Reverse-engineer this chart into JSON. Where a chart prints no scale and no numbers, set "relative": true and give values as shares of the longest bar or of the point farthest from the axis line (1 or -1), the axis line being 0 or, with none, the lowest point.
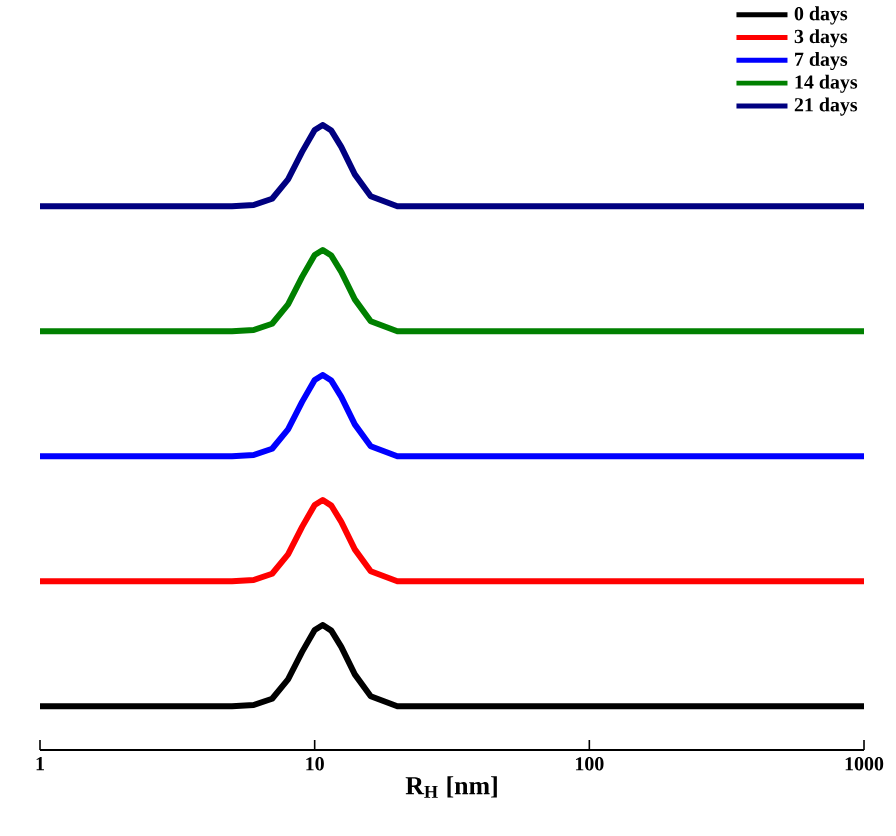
{
  "chart_data": {
    "type": "line",
    "relative": true,
    "log": "x",
    "xlabel": "R$_{H}$ [nm]",
    "xlim": [
      1,
      1000
    ],
    "xticks": [
      1,
      10,
      100,
      1000
    ],
    "legend": "top right",
    "marker": "none",
    "line_style": "solid",
    "x": [
      1,
      5,
      6,
      7,
      8,
      9,
      10,
      10.7,
      11.5,
      12.5,
      14,
      16,
      20,
      1000
    ],
    "series": [
      {
        "name": "0 days",
        "color": "#000000",
        "values": [
          0.07,
          0.07,
          0.072,
          0.082,
          0.113,
          0.157,
          0.192,
          0.2,
          0.191,
          0.165,
          0.121,
          0.086,
          0.07,
          0.07
        ]
      },
      {
        "name": "3 days",
        "color": "#ff0000",
        "values": [
          0.27,
          0.27,
          0.272,
          0.282,
          0.313,
          0.357,
          0.392,
          0.4,
          0.391,
          0.365,
          0.321,
          0.286,
          0.27,
          0.27
        ]
      },
      {
        "name": "7 days",
        "color": "#0000ff",
        "values": [
          0.47,
          0.47,
          0.472,
          0.482,
          0.513,
          0.557,
          0.592,
          0.6,
          0.591,
          0.565,
          0.521,
          0.486,
          0.47,
          0.47
        ]
      },
      {
        "name": "14 days",
        "color": "#008000",
        "values": [
          0.67,
          0.67,
          0.672,
          0.682,
          0.713,
          0.757,
          0.792,
          0.8,
          0.791,
          0.765,
          0.721,
          0.686,
          0.67,
          0.67
        ]
      },
      {
        "name": "21 days",
        "color": "#000080",
        "values": [
          0.87,
          0.87,
          0.872,
          0.882,
          0.913,
          0.957,
          0.992,
          1.0,
          0.991,
          0.965,
          0.921,
          0.886,
          0.87,
          0.87
        ]
      }
    ]
  }
}
